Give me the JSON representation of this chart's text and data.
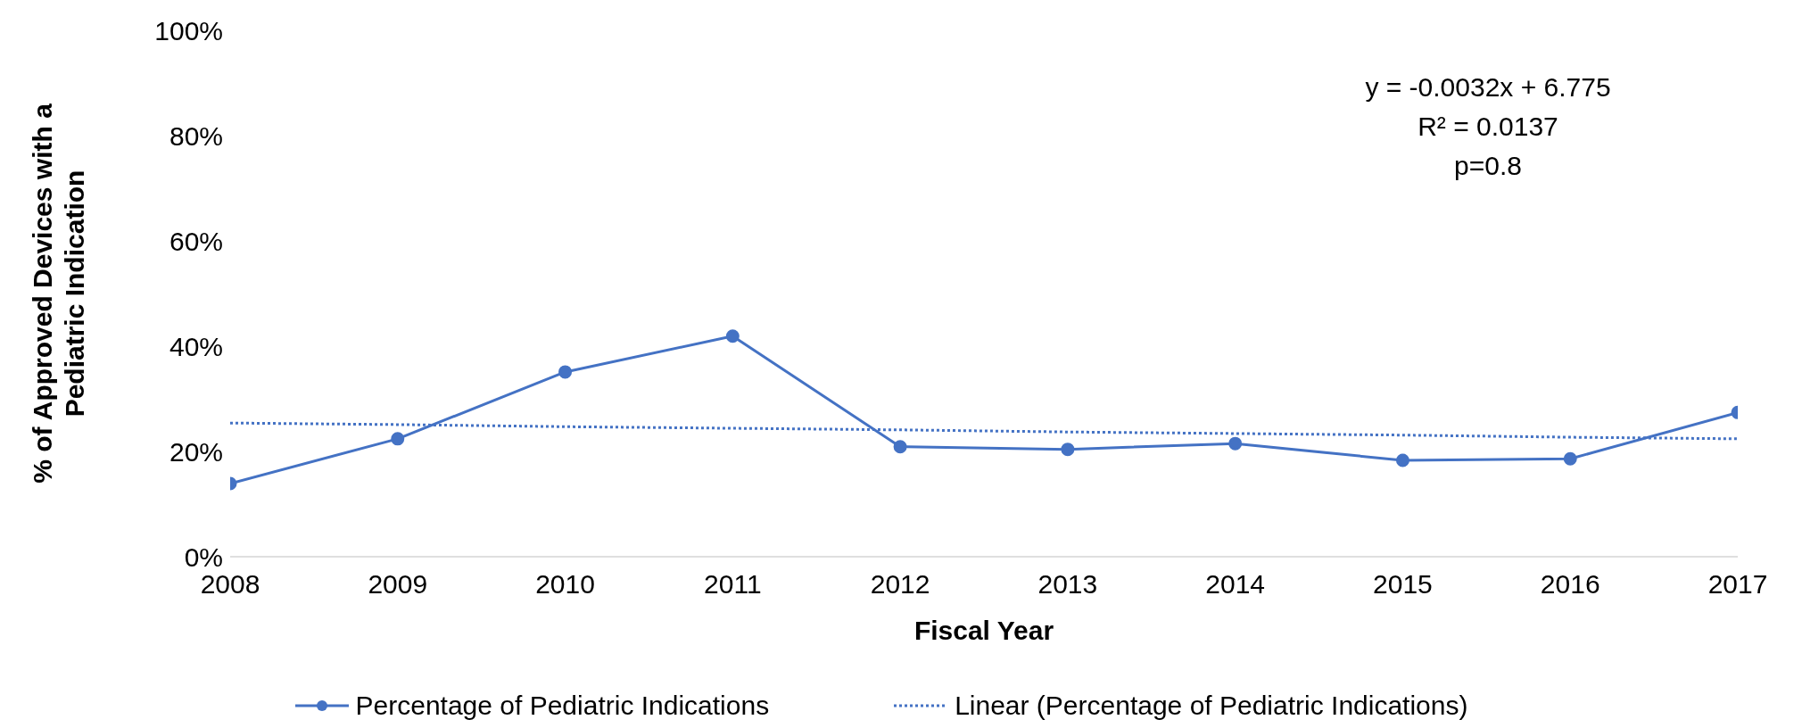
{
  "chart_data": {
    "type": "line",
    "xlabel": "Fiscal Year",
    "ylabel": "% of Approved Devices with a Pediatric Indication",
    "categories": [
      "2008",
      "2009",
      "2010",
      "2011",
      "2012",
      "2013",
      "2014",
      "2015",
      "2016",
      "2017"
    ],
    "series": [
      {
        "name": "Percentage of Pediatric Indications",
        "color": "#4472c4",
        "marker": "circle",
        "line_style": "solid",
        "values": [
          13.9,
          22.4,
          35.1,
          41.9,
          20.9,
          20.4,
          21.5,
          18.3,
          18.6,
          27.4
        ]
      },
      {
        "name": "Linear (Percentage of Pediatric Indications)",
        "color": "#4472c4",
        "marker": "none",
        "line_style": "dotted",
        "values": [
          25.4,
          25.1,
          24.7,
          24.4,
          24.1,
          23.7,
          23.4,
          23.1,
          22.7,
          22.4
        ]
      }
    ],
    "ylim": [
      0,
      100
    ],
    "yticks": [
      {
        "value": 0,
        "label": "0%"
      },
      {
        "value": 20,
        "label": "20%"
      },
      {
        "value": 40,
        "label": "40%"
      },
      {
        "value": 60,
        "label": "60%"
      },
      {
        "value": 80,
        "label": "80%"
      },
      {
        "value": 100,
        "label": "100%"
      }
    ],
    "annotations": [
      "y = -0.0032x + 6.775",
      "R² = 0.0137",
      "p=0.8"
    ],
    "grid": false,
    "legend": "bottom"
  }
}
